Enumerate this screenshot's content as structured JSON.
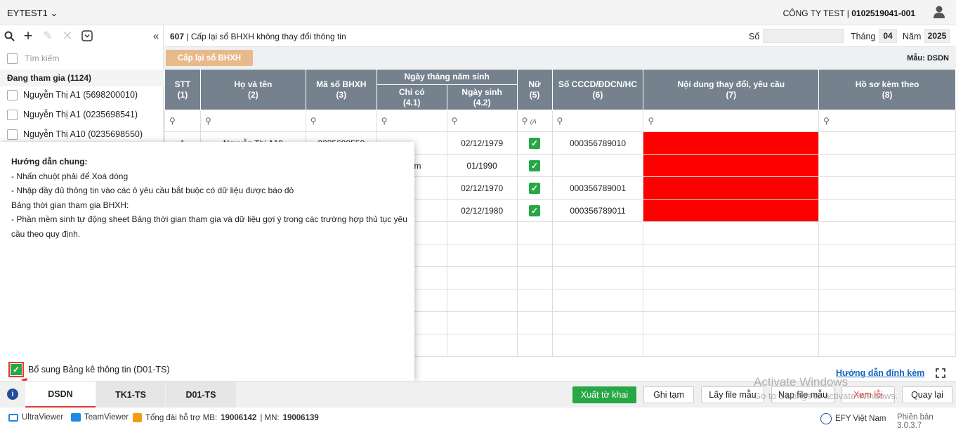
{
  "topbar": {
    "brand": "EYTEST1",
    "company": "CÔNG TY TEST",
    "tax_code": "0102519041-001"
  },
  "sidebar": {
    "search_placeholder": "Tìm kiếm",
    "group_label": "Đang tham gia (1124)",
    "items": [
      {
        "label": "Nguyễn Thị A1 (5698200010)"
      },
      {
        "label": "Nguyễn Thị A1 (0235698541)"
      },
      {
        "label": "Nguyễn Thị A10 (0235698550)"
      }
    ]
  },
  "form": {
    "code": "607",
    "title": "Cấp lại sổ BHXH không thay đổi thông tin",
    "so_label": "Số",
    "so_value": "",
    "thang_label": "Tháng",
    "thang_value": "04",
    "nam_label": "Năm",
    "nam_value": "2025",
    "cap_lai_button": "Cấp lại sổ BHXH",
    "mau_label": "Mẫu: DSDN"
  },
  "table": {
    "headers": {
      "stt": "STT",
      "stt_n": "(1)",
      "hoten": "Họ và tên",
      "hoten_n": "(2)",
      "maso": "Mã số BHXH",
      "maso_n": "(3)",
      "ngaysinh_group": "Ngày tháng năm sinh",
      "chico": "Chỉ có",
      "chico_n": "(4.1)",
      "ngaysinh": "Ngày sinh",
      "ngaysinh_n": "(4.2)",
      "nu": "Nữ",
      "nu_n": "(5)",
      "cccd": "Số CCCD/ĐDCN/HC",
      "cccd_n": "(6)",
      "noidung": "Nội dung thay đổi, yêu cầu",
      "noidung_n": "(7)",
      "hoso": "Hồ sơ kèm theo",
      "hoso_n": "(8)"
    },
    "rows": [
      {
        "stt": "1",
        "hoten": "Nguyễn Thị A10",
        "maso": "0235698550",
        "chico": "",
        "ngaysinh": "02/12/1979",
        "cccd": "000356789010"
      },
      {
        "stt": "",
        "hoten": "",
        "maso": "",
        "chico": "/năm",
        "ngaysinh": "01/1990",
        "cccd": ""
      },
      {
        "stt": "",
        "hoten": "",
        "maso": "",
        "chico": "",
        "ngaysinh": "02/12/1970",
        "cccd": "000356789001"
      },
      {
        "stt": "",
        "hoten": "",
        "maso": "",
        "chico": "",
        "ngaysinh": "02/12/1980",
        "cccd": "000356789011"
      }
    ],
    "filter_nu": "(A"
  },
  "popup": {
    "title": "Hướng dẫn chung:",
    "line1": "- Nhấn chuột phải để Xoá dòng",
    "line2": "- Nhập đầy đủ thông tin vào các ô yêu cầu bắt buộc có dữ liệu được báo đỏ",
    "line3": "Bảng thời gian tham gia BHXH:",
    "line4": "- Phần mềm sinh tự động sheet Bảng thời gian tham gia và dữ liệu gợi ý trong các trường hợp thủ tục yêu cầu theo quy định.",
    "checkbox_label": "Bổ sung Bảng kê thông tin (D01-TS)"
  },
  "links": {
    "guide": "Hướng dẫn đính kèm"
  },
  "tabs": [
    "DSDN",
    "TK1-TS",
    "D01-TS"
  ],
  "buttons": {
    "xuat": "Xuất tờ khai",
    "ghi_tam": "Ghi tạm",
    "lay_file": "Lấy file mẫu",
    "nap_file": "Nạp file mẫu",
    "xem_loi": "Xem lỗi",
    "quay_lai": "Quay lại"
  },
  "watermark": {
    "line1": "Activate Windows",
    "line2": "Go to Settings to activate Windows."
  },
  "footer": {
    "ultraviewer": "UltraViewer",
    "teamviewer": "TeamViewer",
    "hotline_label": "Tổng đài hỗ trợ MB:",
    "hotline_mb": "19006142",
    "sep": "| MN:",
    "hotline_mn": "19006139",
    "efy": "EFY Việt Nam",
    "version": "Phiên bản 3.0.3.7"
  },
  "colors": {
    "header_bg": "#75828e",
    "error": "#ff0000",
    "success": "#27a844",
    "accent_btn": "#e8b98a"
  }
}
